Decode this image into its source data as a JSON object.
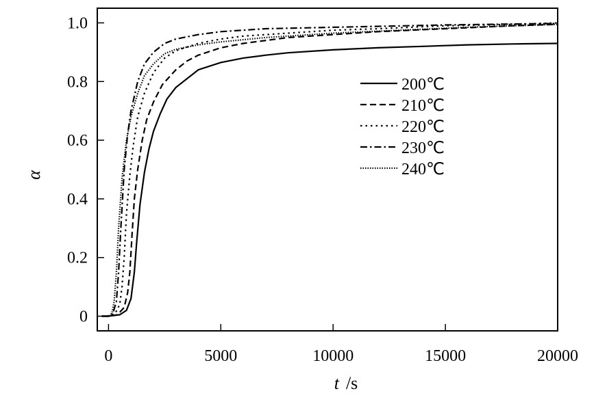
{
  "chart_data": {
    "type": "line",
    "title": "",
    "xlabel": {
      "symbol": "t",
      "unit": "/s"
    },
    "ylabel": "α",
    "xlim": [
      -500,
      20000
    ],
    "ylim": [
      -0.05,
      1.05
    ],
    "x_ticks": [
      0,
      5000,
      10000,
      15000,
      20000
    ],
    "x_tick_labels": [
      "0",
      "5000",
      "10000",
      "15000",
      "20000"
    ],
    "y_ticks": [
      0,
      0.2,
      0.4,
      0.6,
      0.8,
      1.0
    ],
    "y_tick_labels": [
      "0",
      "0.2",
      "0.4",
      "0.6",
      "0.8",
      "1.0"
    ],
    "grid": false,
    "legend_position": "right-center",
    "series": [
      {
        "name": "200℃",
        "dash": "solid",
        "points": [
          [
            -300,
            0
          ],
          [
            0,
            0
          ],
          [
            500,
            0.005
          ],
          [
            800,
            0.02
          ],
          [
            1000,
            0.06
          ],
          [
            1150,
            0.15
          ],
          [
            1250,
            0.25
          ],
          [
            1400,
            0.38
          ],
          [
            1600,
            0.49
          ],
          [
            1800,
            0.57
          ],
          [
            2000,
            0.63
          ],
          [
            2300,
            0.69
          ],
          [
            2600,
            0.74
          ],
          [
            3000,
            0.78
          ],
          [
            3500,
            0.81
          ],
          [
            4000,
            0.84
          ],
          [
            5000,
            0.865
          ],
          [
            6000,
            0.88
          ],
          [
            7000,
            0.89
          ],
          [
            8000,
            0.898
          ],
          [
            10000,
            0.908
          ],
          [
            12000,
            0.915
          ],
          [
            14000,
            0.92
          ],
          [
            16000,
            0.925
          ],
          [
            18000,
            0.928
          ],
          [
            20000,
            0.93
          ]
        ]
      },
      {
        "name": "210℃",
        "dash": "dashed",
        "points": [
          [
            -300,
            0
          ],
          [
            0,
            0
          ],
          [
            400,
            0.005
          ],
          [
            700,
            0.03
          ],
          [
            850,
            0.08
          ],
          [
            950,
            0.15
          ],
          [
            1050,
            0.28
          ],
          [
            1150,
            0.4
          ],
          [
            1300,
            0.5
          ],
          [
            1500,
            0.6
          ],
          [
            1700,
            0.67
          ],
          [
            2000,
            0.73
          ],
          [
            2400,
            0.79
          ],
          [
            3000,
            0.84
          ],
          [
            3500,
            0.87
          ],
          [
            4000,
            0.89
          ],
          [
            5000,
            0.915
          ],
          [
            6000,
            0.93
          ],
          [
            8000,
            0.95
          ],
          [
            10000,
            0.96
          ],
          [
            12000,
            0.97
          ],
          [
            15000,
            0.98
          ],
          [
            18000,
            0.99
          ],
          [
            20000,
            0.995
          ]
        ]
      },
      {
        "name": "220℃",
        "dash": "dotted",
        "points": [
          [
            -300,
            0
          ],
          [
            0,
            0
          ],
          [
            300,
            0.01
          ],
          [
            500,
            0.04
          ],
          [
            600,
            0.1
          ],
          [
            700,
            0.2
          ],
          [
            800,
            0.35
          ],
          [
            950,
            0.48
          ],
          [
            1100,
            0.58
          ],
          [
            1300,
            0.68
          ],
          [
            1600,
            0.76
          ],
          [
            2000,
            0.83
          ],
          [
            2500,
            0.88
          ],
          [
            3000,
            0.905
          ],
          [
            4000,
            0.93
          ],
          [
            5000,
            0.945
          ],
          [
            6000,
            0.955
          ],
          [
            8000,
            0.965
          ],
          [
            10000,
            0.975
          ],
          [
            12000,
            0.98
          ],
          [
            15000,
            0.99
          ],
          [
            18000,
            0.995
          ],
          [
            20000,
            1.0
          ]
        ]
      },
      {
        "name": "230℃",
        "dash": "dashdot",
        "points": [
          [
            -300,
            0
          ],
          [
            0,
            0
          ],
          [
            200,
            0.01
          ],
          [
            350,
            0.05
          ],
          [
            450,
            0.15
          ],
          [
            550,
            0.3
          ],
          [
            700,
            0.5
          ],
          [
            850,
            0.62
          ],
          [
            1000,
            0.7
          ],
          [
            1300,
            0.8
          ],
          [
            1600,
            0.86
          ],
          [
            2000,
            0.9
          ],
          [
            2500,
            0.93
          ],
          [
            3000,
            0.945
          ],
          [
            4000,
            0.96
          ],
          [
            5000,
            0.97
          ],
          [
            7000,
            0.98
          ],
          [
            10000,
            0.985
          ],
          [
            15000,
            0.993
          ],
          [
            20000,
            0.998
          ]
        ]
      },
      {
        "name": "240℃",
        "dash": "dotted-dense",
        "points": [
          [
            -300,
            0
          ],
          [
            0,
            0
          ],
          [
            150,
            0.01
          ],
          [
            250,
            0.05
          ],
          [
            350,
            0.15
          ],
          [
            450,
            0.3
          ],
          [
            600,
            0.47
          ],
          [
            800,
            0.6
          ],
          [
            1000,
            0.68
          ],
          [
            1300,
            0.76
          ],
          [
            1600,
            0.82
          ],
          [
            2000,
            0.86
          ],
          [
            2500,
            0.895
          ],
          [
            3000,
            0.91
          ],
          [
            4000,
            0.925
          ],
          [
            5000,
            0.935
          ],
          [
            7000,
            0.95
          ],
          [
            10000,
            0.965
          ],
          [
            13000,
            0.975
          ],
          [
            16000,
            0.985
          ],
          [
            20000,
            0.995
          ]
        ]
      }
    ]
  }
}
